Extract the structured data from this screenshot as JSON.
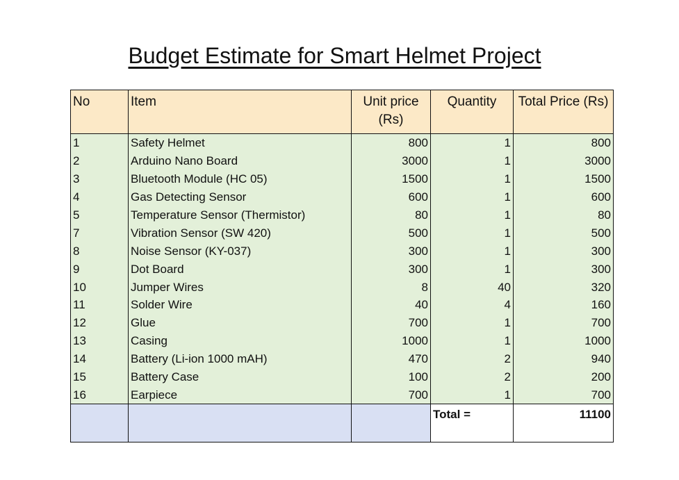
{
  "title": "Budget Estimate for Smart Helmet Project",
  "table": {
    "headers": {
      "no": "No",
      "item": "Item",
      "unit_price": "Unit price (Rs)",
      "quantity": "Quantity",
      "total_price": "Total Price (Rs)"
    },
    "rows": [
      {
        "no": "1",
        "item": "Safety Helmet",
        "unit_price": "800",
        "quantity": "1",
        "total": "800"
      },
      {
        "no": "2",
        "item": "Arduino Nano Board",
        "unit_price": "3000",
        "quantity": "1",
        "total": "3000"
      },
      {
        "no": "3",
        "item": "Bluetooth Module (HC 05)",
        "unit_price": "1500",
        "quantity": "1",
        "total": "1500"
      },
      {
        "no": "4",
        "item": "Gas Detecting Sensor",
        "unit_price": "600",
        "quantity": "1",
        "total": "600"
      },
      {
        "no": "5",
        "item": "Temperature Sensor (Thermistor)",
        "unit_price": "80",
        "quantity": "1",
        "total": "80"
      },
      {
        "no": "7",
        "item": "Vibration Sensor (SW 420)",
        "unit_price": "500",
        "quantity": "1",
        "total": "500"
      },
      {
        "no": "8",
        "item": "Noise Sensor (KY-037)",
        "unit_price": "300",
        "quantity": "1",
        "total": "300"
      },
      {
        "no": "9",
        "item": "Dot Board",
        "unit_price": "300",
        "quantity": "1",
        "total": "300"
      },
      {
        "no": "10",
        "item": "Jumper Wires",
        "unit_price": "8",
        "quantity": "40",
        "total": "320"
      },
      {
        "no": "11",
        "item": "Solder Wire",
        "unit_price": "40",
        "quantity": "4",
        "total": "160"
      },
      {
        "no": "12",
        "item": "Glue",
        "unit_price": "700",
        "quantity": "1",
        "total": "700"
      },
      {
        "no": "13",
        "item": "Casing",
        "unit_price": "1000",
        "quantity": "1",
        "total": "1000"
      },
      {
        "no": "14",
        "item": "Battery (Li-ion 1000 mAH)",
        "unit_price": "470",
        "quantity": "2",
        "total": "940"
      },
      {
        "no": "15",
        "item": "Battery Case",
        "unit_price": "100",
        "quantity": "2",
        "total": "200"
      },
      {
        "no": "16",
        "item": "Earpiece",
        "unit_price": "700",
        "quantity": "1",
        "total": "700"
      }
    ],
    "total_label": "Total =",
    "total_value": "11100"
  },
  "colors": {
    "header_bg": "#fce9c7",
    "row_bg": "#e3f0d9",
    "footer_bg": "#d9e0f3"
  }
}
